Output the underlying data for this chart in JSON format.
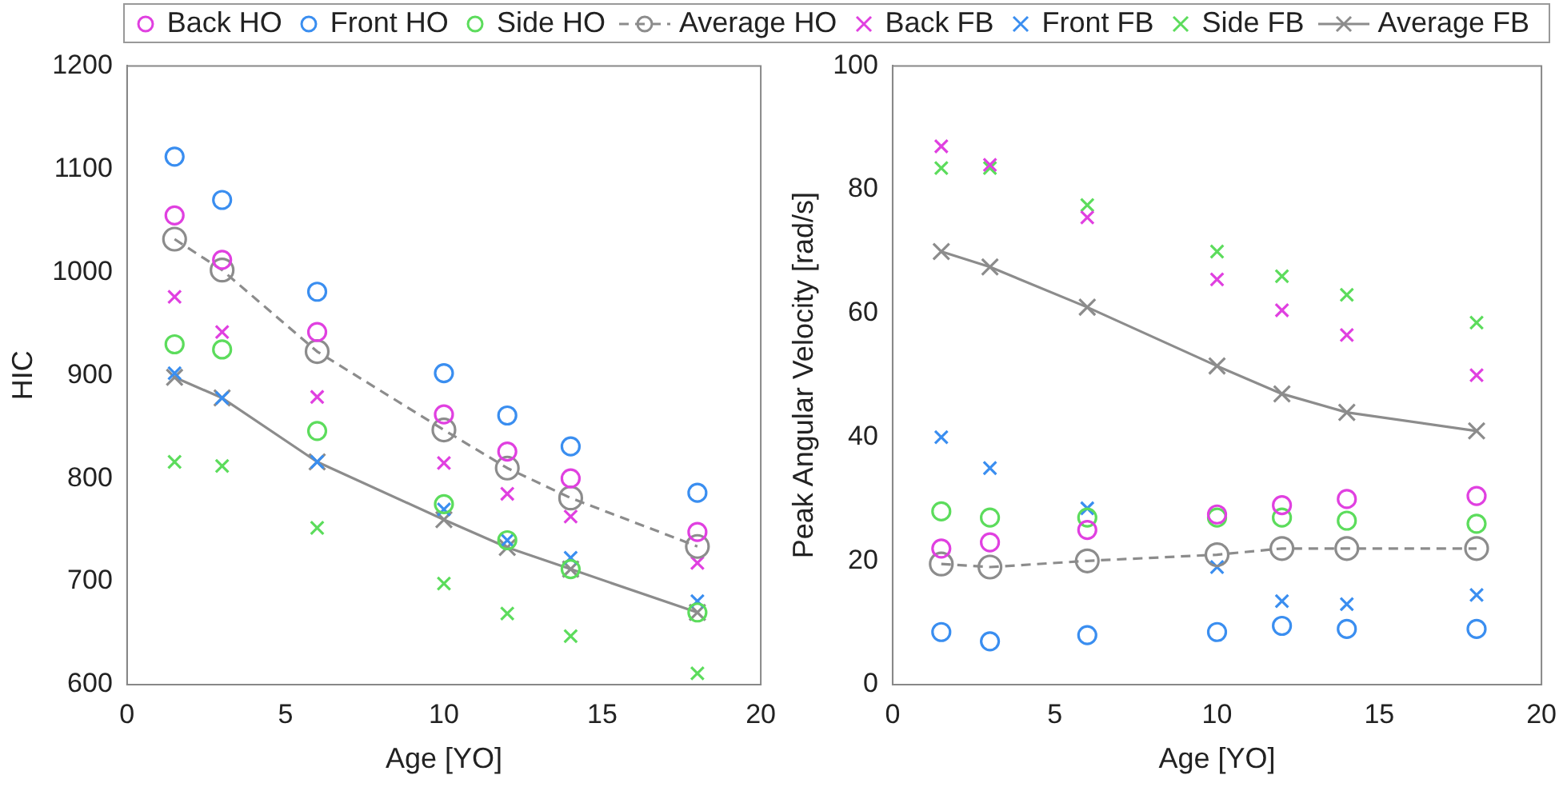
{
  "chart_data": [
    {
      "type": "scatter",
      "xlabel": "Age [YO]",
      "ylabel": "HIC",
      "x": [
        1.5,
        3,
        6,
        10,
        12,
        14,
        18
      ],
      "xlim": [
        0,
        20
      ],
      "xticks": [
        0,
        5,
        10,
        15,
        20
      ],
      "ylim": [
        600,
        1200
      ],
      "yticks": [
        600,
        700,
        800,
        900,
        1000,
        1100,
        1200
      ],
      "grid": false,
      "legend": "top",
      "series": [
        {
          "name": "Back HO",
          "type": "scatter",
          "marker": "circle",
          "color": "#e040e0",
          "values": [
            1055,
            1012,
            942,
            862,
            826,
            800,
            748
          ]
        },
        {
          "name": "Front HO",
          "type": "scatter",
          "marker": "circle",
          "color": "#3a8ef0",
          "values": [
            1112,
            1070,
            981,
            902,
            861,
            831,
            786
          ]
        },
        {
          "name": "Side HO",
          "type": "scatter",
          "marker": "circle",
          "color": "#5cdc5c",
          "values": [
            930,
            925,
            846,
            775,
            740,
            712,
            670
          ]
        },
        {
          "name": "Average HO",
          "type": "line",
          "marker": "circle",
          "line_style": "dashed",
          "color": "#8c8c8c",
          "values": [
            1032,
            1002,
            923,
            847,
            810,
            781,
            734
          ]
        },
        {
          "name": "Back FB",
          "type": "scatter",
          "marker": "cross",
          "color": "#e040e0",
          "values": [
            976,
            942,
            879,
            815,
            785,
            763,
            718
          ]
        },
        {
          "name": "Front FB",
          "type": "scatter",
          "marker": "cross",
          "color": "#3a8ef0",
          "values": [
            902,
            878,
            816,
            770,
            740,
            723,
            681
          ]
        },
        {
          "name": "Side FB",
          "type": "scatter",
          "marker": "cross",
          "color": "#5cdc5c",
          "values": [
            816,
            812,
            752,
            698,
            669,
            647,
            611
          ]
        },
        {
          "name": "Average FB",
          "type": "line",
          "marker": "cross",
          "line_style": "solid",
          "color": "#8c8c8c",
          "values": [
            898,
            878,
            816,
            760,
            733,
            712,
            670
          ]
        }
      ]
    },
    {
      "type": "scatter",
      "xlabel": "Age [YO]",
      "ylabel": "Peak Angular Velocity [rad/s]",
      "x": [
        1.5,
        3,
        6,
        10,
        12,
        14,
        18
      ],
      "xlim": [
        0,
        20
      ],
      "xticks": [
        0,
        5,
        10,
        15,
        20
      ],
      "ylim": [
        0,
        100
      ],
      "yticks": [
        0,
        20,
        40,
        60,
        80,
        100
      ],
      "grid": false,
      "legend": "top",
      "series": [
        {
          "name": "Back HO",
          "type": "scatter",
          "marker": "circle",
          "color": "#e040e0",
          "values": [
            22,
            23,
            25,
            27.5,
            29,
            30,
            30.5
          ]
        },
        {
          "name": "Front HO",
          "type": "scatter",
          "marker": "circle",
          "color": "#3a8ef0",
          "values": [
            8.5,
            7,
            8,
            8.5,
            9.5,
            9,
            9
          ]
        },
        {
          "name": "Side HO",
          "type": "scatter",
          "marker": "circle",
          "color": "#5cdc5c",
          "values": [
            28,
            27,
            27,
            27,
            27,
            26.5,
            26
          ]
        },
        {
          "name": "Average HO",
          "type": "line",
          "marker": "circle",
          "line_style": "dashed",
          "color": "#8c8c8c",
          "values": [
            19.5,
            19,
            20,
            21,
            22,
            22,
            22
          ]
        },
        {
          "name": "Back FB",
          "type": "scatter",
          "marker": "cross",
          "color": "#e040e0",
          "values": [
            87,
            84,
            75.5,
            65.5,
            60.5,
            56.5,
            50
          ]
        },
        {
          "name": "Front FB",
          "type": "scatter",
          "marker": "cross",
          "color": "#3a8ef0",
          "values": [
            40,
            35,
            28.5,
            19,
            13.5,
            13,
            14.5
          ]
        },
        {
          "name": "Side FB",
          "type": "scatter",
          "marker": "cross",
          "color": "#5cdc5c",
          "values": [
            83.5,
            83.5,
            77.5,
            70,
            66,
            63,
            58.5
          ]
        },
        {
          "name": "Average FB",
          "type": "line",
          "marker": "cross",
          "line_style": "solid",
          "color": "#8c8c8c",
          "values": [
            70,
            67.5,
            61,
            51.5,
            47,
            44,
            41
          ]
        }
      ]
    }
  ]
}
